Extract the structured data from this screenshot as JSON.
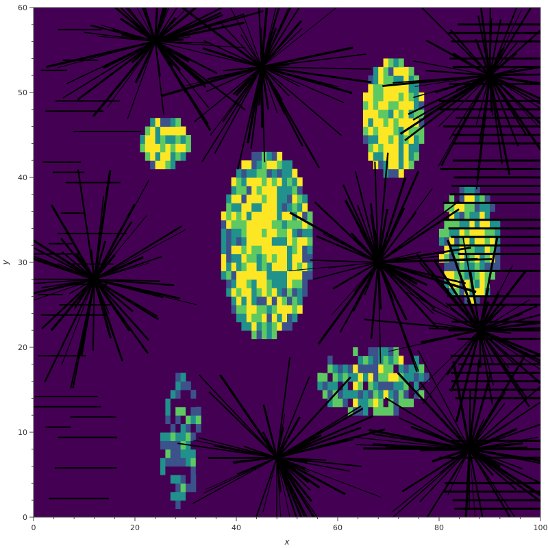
{
  "chart_data": {
    "type": "heatmap",
    "title": "",
    "xlabel": "x",
    "ylabel": "y",
    "xlim": [
      0,
      100
    ],
    "ylim": [
      0,
      60
    ],
    "xticks": [
      "0",
      "20",
      "40",
      "60",
      "80",
      "100"
    ],
    "yticks": [
      "0",
      "10",
      "20",
      "30",
      "40",
      "50",
      "60"
    ],
    "colormap": [
      "#440154",
      "#3b528b",
      "#21918c",
      "#5ec962",
      "#fde725"
    ],
    "background_color": "#440154",
    "overlay": "black line-segment vector field (star bursts)",
    "grid": false,
    "regions": [
      {
        "cx": 46,
        "cy": 32,
        "rx": 9,
        "ry": 11,
        "level": 0.75
      },
      {
        "cx": 71,
        "cy": 47,
        "rx": 6,
        "ry": 7,
        "level": 0.8
      },
      {
        "cx": 86,
        "cy": 32,
        "rx": 6,
        "ry": 7,
        "level": 0.7
      },
      {
        "cx": 67,
        "cy": 16,
        "rx": 11,
        "ry": 4,
        "level": 0.5
      },
      {
        "cx": 26,
        "cy": 44,
        "rx": 5,
        "ry": 3,
        "level": 0.7
      },
      {
        "cx": 29,
        "cy": 9,
        "rx": 4,
        "ry": 8,
        "level": 0.3
      }
    ],
    "bursts": [
      {
        "x": 48,
        "y": 7
      },
      {
        "x": 68,
        "y": 30
      },
      {
        "x": 45,
        "y": 53
      },
      {
        "x": 12,
        "y": 28
      },
      {
        "x": 90,
        "y": 52
      },
      {
        "x": 88,
        "y": 22
      },
      {
        "x": 24,
        "y": 56
      },
      {
        "x": 86,
        "y": 8
      }
    ]
  }
}
